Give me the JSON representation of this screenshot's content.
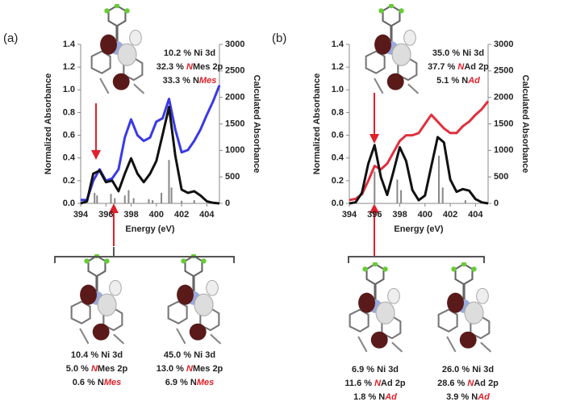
{
  "chart_data": [
    {
      "type": "line",
      "label": "(a)",
      "x_label": "Energy (eV)",
      "y_label": "Normalized Absorbance",
      "y2_label": "Calculated Absorbance",
      "x": [
        394,
        394.5,
        395,
        395.5,
        396,
        396.5,
        397,
        397.5,
        398,
        398.5,
        399,
        399.5,
        400,
        400.5,
        401,
        401.5,
        402,
        402.5,
        403,
        403.5,
        404,
        404.5,
        405
      ],
      "xlim": [
        394,
        405
      ],
      "xticks": [
        394,
        396,
        398,
        400,
        402,
        404
      ],
      "ylim": [
        0,
        1.4
      ],
      "yticks": [
        {
          "value": 0,
          "label": "0.0"
        },
        {
          "value": 0.2,
          "label": "0.2"
        },
        {
          "value": 0.4,
          "label": "0.4"
        },
        {
          "value": 0.6,
          "label": "0.6"
        },
        {
          "value": 0.8,
          "label": "0.8"
        },
        {
          "value": 1,
          "label": "1.0"
        },
        {
          "value": 1.2,
          "label": "1.2"
        },
        {
          "value": 1.4,
          "label": "1.4"
        }
      ],
      "y2lim": [
        0,
        3000
      ],
      "y2ticks": [
        0,
        500,
        1000,
        1500,
        2000,
        2500,
        3000
      ],
      "series": [
        {
          "color": "#3a3ae6",
          "values": [
            0.03,
            0.03,
            0.2,
            0.3,
            0.2,
            0.22,
            0.3,
            0.58,
            0.74,
            0.6,
            0.55,
            0.58,
            0.72,
            0.75,
            0.92,
            0.65,
            0.45,
            0.47,
            0.55,
            0.65,
            0.78,
            0.9,
            1.04
          ]
        },
        {
          "color": "#111111",
          "axis": "y2",
          "values": [
            0,
            40,
            560,
            620,
            400,
            430,
            230,
            560,
            850,
            560,
            400,
            560,
            800,
            1300,
            1820,
            900,
            260,
            200,
            230,
            150,
            40,
            10,
            0
          ]
        }
      ],
      "sticks": {
        "color": "#888888",
        "axis": "y2",
        "x": [
          395.1,
          395.3,
          396.4,
          396.7,
          397.5,
          397.8,
          398.2,
          399.4,
          399.7,
          400.4,
          401,
          401.2,
          402,
          403
        ],
        "values": [
          200,
          150,
          180,
          100,
          150,
          250,
          100,
          80,
          60,
          200,
          820,
          300,
          50,
          60
        ]
      },
      "annotation": [
        [
          "10.2 % Ni 3d"
        ],
        [
          "32.3 % ",
          "N",
          "Mes 2p"
        ],
        [
          "33.3 % N",
          "Mes"
        ]
      ],
      "lower_annotations": [
        [
          [
            "10.4 % Ni 3d"
          ],
          [
            "5.0 % ",
            "N",
            "Mes 2p"
          ],
          [
            "0.6 % N",
            "Mes"
          ]
        ],
        [
          [
            "45.0 % Ni 3d"
          ],
          [
            "13.0 % ",
            "N",
            "Mes 2p"
          ],
          [
            "6.9 % N",
            "Mes"
          ]
        ]
      ]
    },
    {
      "type": "line",
      "label": "(b)",
      "x_label": "Energy (eV)",
      "y_label": "Normalized Absorbance",
      "y2_label": "Calculated Absorbance",
      "x": [
        394,
        394.5,
        395,
        395.5,
        396,
        396.5,
        397,
        397.5,
        398,
        398.5,
        399,
        399.5,
        400,
        400.5,
        401,
        401.5,
        402,
        402.5,
        403,
        403.5,
        404,
        404.5,
        405
      ],
      "xlim": [
        394,
        405
      ],
      "xticks": [
        394,
        396,
        398,
        400,
        402,
        404
      ],
      "ylim": [
        0,
        1.4
      ],
      "yticks": [
        {
          "value": 0,
          "label": "0.0"
        },
        {
          "value": 0.2,
          "label": "0.2"
        },
        {
          "value": 0.4,
          "label": "0.4"
        },
        {
          "value": 0.6,
          "label": "0.6"
        },
        {
          "value": 0.8,
          "label": "0.8"
        },
        {
          "value": 1,
          "label": "1.0"
        },
        {
          "value": 1.2,
          "label": "1.2"
        },
        {
          "value": 1.4,
          "label": "1.4"
        }
      ],
      "y2lim": [
        0,
        3000
      ],
      "y2ticks": [
        0,
        500,
        1000,
        1500,
        2000,
        2500,
        3000
      ],
      "series": [
        {
          "color": "#e0303e",
          "values": [
            0.03,
            0.04,
            0.08,
            0.2,
            0.33,
            0.3,
            0.35,
            0.45,
            0.55,
            0.6,
            0.6,
            0.62,
            0.7,
            0.78,
            0.72,
            0.66,
            0.62,
            0.62,
            0.68,
            0.72,
            0.78,
            0.83,
            0.9
          ]
        },
        {
          "color": "#111111",
          "axis": "y2",
          "values": [
            0,
            20,
            200,
            750,
            1100,
            500,
            160,
            600,
            1060,
            800,
            250,
            60,
            150,
            700,
            1250,
            1150,
            450,
            220,
            270,
            240,
            80,
            20,
            0
          ]
        }
      ],
      "sticks": {
        "color": "#888888",
        "axis": "y2",
        "x": [
          396,
          397.8,
          398.1,
          401.1,
          401.4,
          403.2
        ],
        "values": [
          600,
          450,
          250,
          900,
          300,
          60
        ]
      },
      "annotation": [
        [
          "35.0 % Ni 3d"
        ],
        [
          "37.7 % ",
          "N",
          "Ad 2p"
        ],
        [
          "5.1 % N",
          "Ad"
        ]
      ],
      "lower_annotations": [
        [
          [
            "6.9 % Ni 3d"
          ],
          [
            "11.6 % ",
            "N",
            "Ad 2p"
          ],
          [
            "1.8 % N",
            "Ad"
          ]
        ],
        [
          [
            "26.0 % Ni 3d"
          ],
          [
            "28.6 % ",
            "N",
            "Ad 2p"
          ],
          [
            "3.9 % N",
            "Ad"
          ]
        ]
      ]
    }
  ]
}
